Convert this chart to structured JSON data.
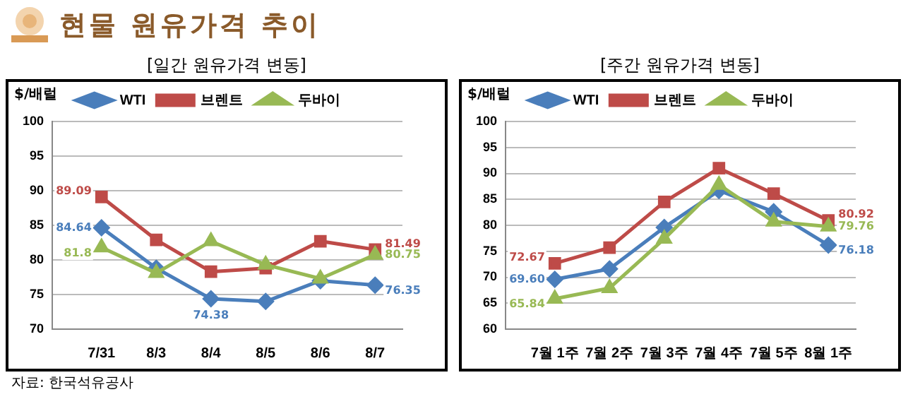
{
  "chart_data": [
    {
      "type": "line",
      "title": "현물 원유가격 추이",
      "subtitle": "[일간 원유가격 변동]",
      "ylabel": "$/배럴",
      "categories": [
        "7/31",
        "8/3",
        "8/4",
        "8/5",
        "8/6",
        "8/7"
      ],
      "ylim": [
        70,
        100
      ],
      "yticks": [
        70,
        75,
        80,
        85,
        90,
        95,
        100
      ],
      "grid": "y",
      "legend": "top",
      "annotations": [
        "자료: 한국석유공사"
      ],
      "series": [
        {
          "name": "WTI",
          "color": "#4a7ebb",
          "marker": "diamond",
          "values": [
            84.64,
            78.8,
            74.38,
            74.0,
            77.0,
            76.35
          ],
          "value_labels": [
            "84.64",
            null,
            "74.38",
            null,
            null,
            "76.35"
          ]
        },
        {
          "name": "브렌트",
          "color": "#be4b48",
          "marker": "square",
          "values": [
            89.09,
            82.9,
            78.3,
            78.8,
            82.7,
            81.49
          ],
          "value_labels": [
            "89.09",
            null,
            null,
            null,
            null,
            "81.49"
          ]
        },
        {
          "name": "두바이",
          "color": "#98b954",
          "marker": "triangle",
          "values": [
            81.8,
            78.1,
            82.7,
            79.3,
            77.3,
            80.75
          ],
          "value_labels": [
            "81.8",
            null,
            null,
            null,
            null,
            "80.75"
          ]
        }
      ]
    },
    {
      "type": "line",
      "subtitle": "[주간 원유가격 변동]",
      "ylabel": "$/배럴",
      "categories": [
        "7월 1주",
        "7월 2주",
        "7월 3주",
        "7월 4주",
        "7월 5주",
        "8월 1주"
      ],
      "ylim": [
        60,
        100
      ],
      "yticks": [
        60,
        65,
        70,
        75,
        80,
        85,
        90,
        95,
        100
      ],
      "grid": "y",
      "legend": "top",
      "series": [
        {
          "name": "WTI",
          "color": "#4a7ebb",
          "marker": "diamond",
          "values": [
            69.6,
            71.6,
            79.6,
            86.7,
            82.6,
            76.18
          ],
          "value_labels": [
            "69.60",
            null,
            null,
            null,
            null,
            "76.18"
          ]
        },
        {
          "name": "브렌트",
          "color": "#be4b48",
          "marker": "square",
          "values": [
            72.67,
            75.7,
            84.5,
            91.0,
            86.1,
            80.92
          ],
          "value_labels": [
            "72.67",
            null,
            null,
            null,
            null,
            "80.92"
          ]
        },
        {
          "name": "두바이",
          "color": "#98b954",
          "marker": "triangle",
          "values": [
            65.84,
            67.9,
            77.4,
            87.8,
            80.7,
            79.76
          ],
          "value_labels": [
            "65.84",
            null,
            null,
            null,
            null,
            "79.76"
          ]
        }
      ]
    }
  ]
}
